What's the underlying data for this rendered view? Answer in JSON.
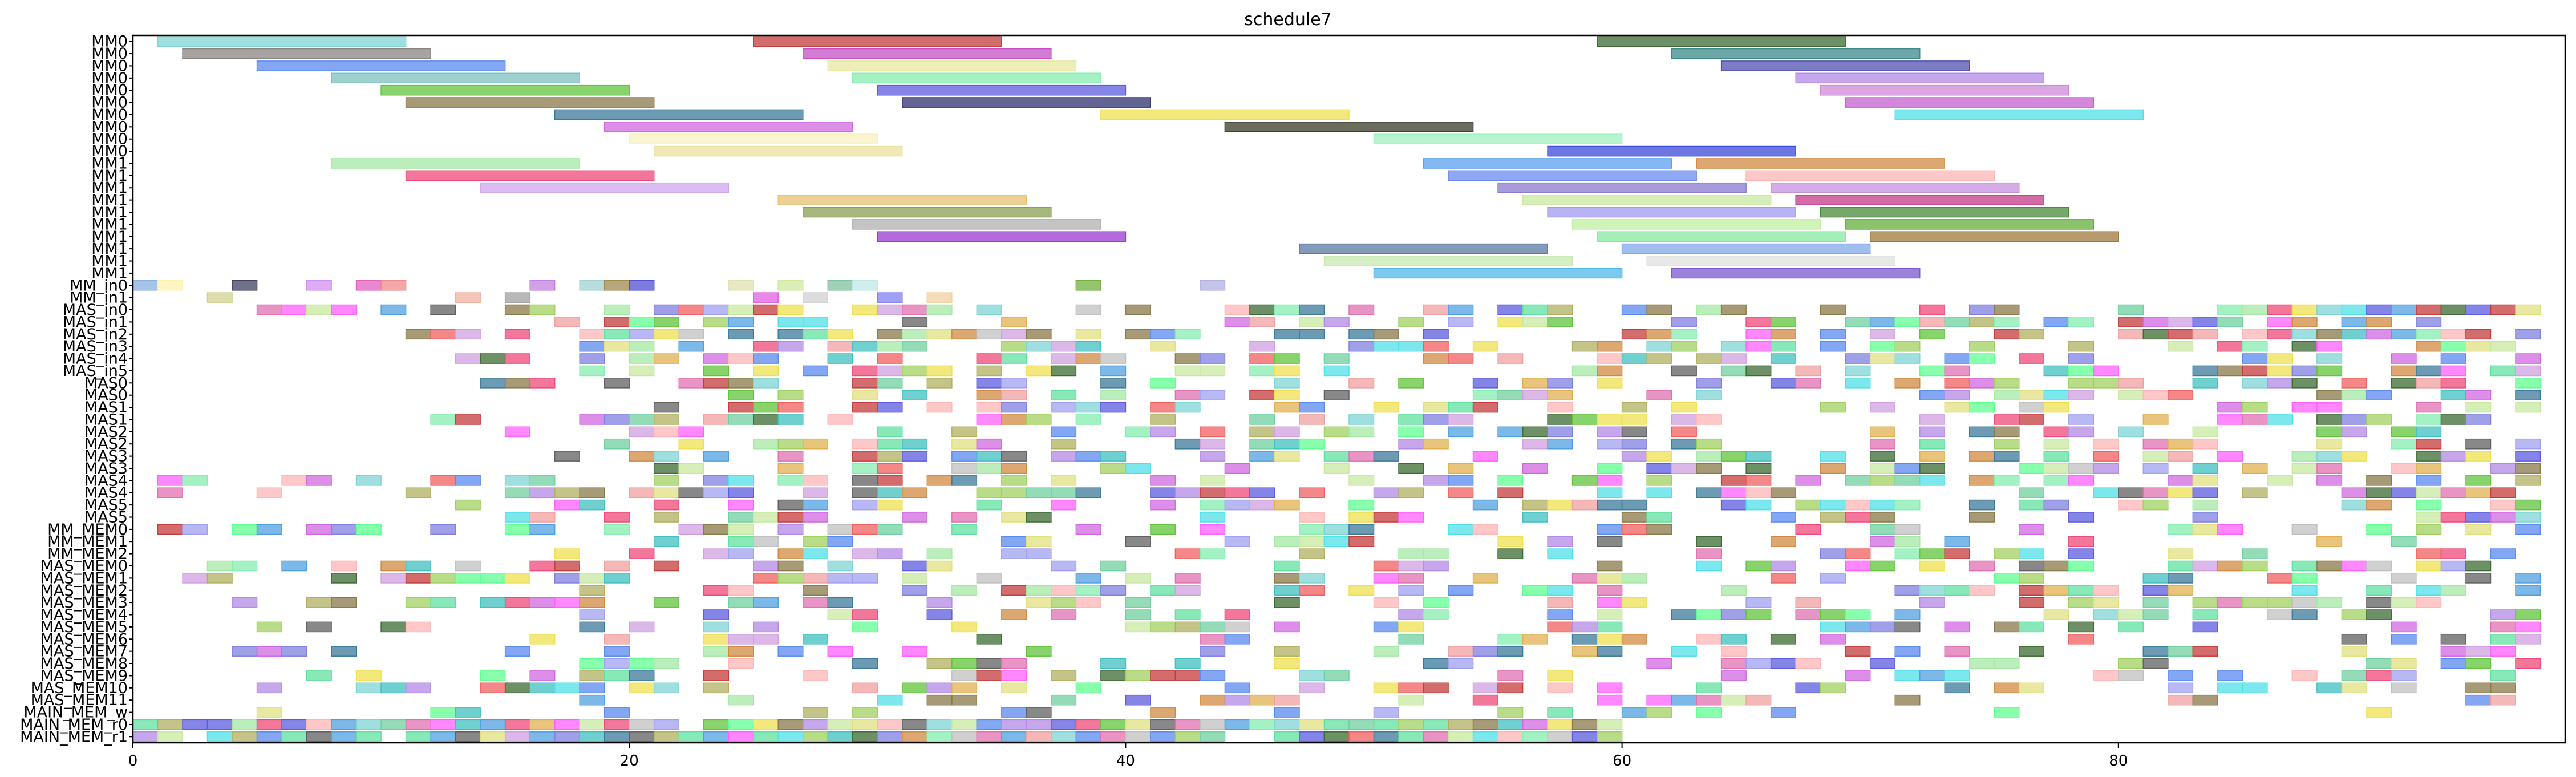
{
  "chart_data": {
    "type": "gantt",
    "title": "schedule7",
    "xlabel": "",
    "ylabel": "",
    "xlim": [
      0,
      98
    ],
    "x_ticks": [
      0,
      20,
      40,
      60,
      80
    ],
    "grid": false,
    "legend": "none",
    "rows": [
      {
        "label": "MM0",
        "bars": [
          [
            1,
            11,
            "#7fd4d4"
          ],
          [
            25,
            35,
            "#c43c3c"
          ],
          [
            59,
            69,
            "#3d6b33"
          ]
        ]
      },
      {
        "label": "MM0",
        "bars": [
          [
            2,
            12,
            "#8a8480"
          ],
          [
            27,
            37,
            "#c450c4"
          ],
          [
            62,
            72,
            "#3c8a8a"
          ]
        ]
      },
      {
        "label": "MM0",
        "bars": [
          [
            5,
            15,
            "#5a8aee"
          ],
          [
            28,
            38,
            "#e8e8a0"
          ],
          [
            64,
            74,
            "#5050b0"
          ]
        ]
      },
      {
        "label": "MM0",
        "bars": [
          [
            8,
            18,
            "#7ec0c0"
          ],
          [
            29,
            39,
            "#86eeb0"
          ],
          [
            67,
            77,
            "#b38ae6"
          ]
        ]
      },
      {
        "label": "MM0",
        "bars": [
          [
            10,
            20,
            "#62c43c"
          ],
          [
            30,
            40,
            "#5c5ce0"
          ],
          [
            68,
            78,
            "#d088d8"
          ]
        ]
      },
      {
        "label": "MM0",
        "bars": [
          [
            11,
            21,
            "#8a7a4a"
          ],
          [
            31,
            41,
            "#303070"
          ],
          [
            69,
            79,
            "#c460d0"
          ]
        ]
      },
      {
        "label": "MM0",
        "bars": [
          [
            17,
            27,
            "#3c7a9a"
          ],
          [
            39,
            49,
            "#eee050"
          ],
          [
            71,
            81,
            "#50e0e8"
          ]
        ]
      },
      {
        "label": "MM0",
        "bars": [
          [
            19,
            29,
            "#d068e0"
          ],
          [
            44,
            54,
            "#3a3a28"
          ]
        ]
      },
      {
        "label": "MM0",
        "bars": [
          [
            20,
            30,
            "#f8f0c0"
          ],
          [
            50,
            60,
            "#a0f0c0"
          ]
        ]
      },
      {
        "label": "MM0",
        "bars": [
          [
            21,
            31,
            "#ece0a0"
          ],
          [
            57,
            67,
            "#3c4ad8"
          ]
        ]
      },
      {
        "label": "MM1",
        "bars": [
          [
            8,
            18,
            "#a6e8a6"
          ],
          [
            52,
            62,
            "#5ca0ee"
          ],
          [
            63,
            73,
            "#d08a40"
          ]
        ]
      },
      {
        "label": "MM1",
        "bars": [
          [
            11,
            21,
            "#ee4a7a"
          ],
          [
            53,
            63,
            "#6a8af0"
          ],
          [
            65,
            75,
            "#ffb6b6"
          ]
        ]
      },
      {
        "label": "MM1",
        "bars": [
          [
            14,
            24,
            "#d0a6ee"
          ],
          [
            55,
            65,
            "#8a7ad0"
          ],
          [
            66,
            76,
            "#c490e0"
          ]
        ]
      },
      {
        "label": "MM1",
        "bars": [
          [
            26,
            36,
            "#e8c070"
          ],
          [
            56,
            66,
            "#c8e8a0"
          ],
          [
            67,
            77,
            "#c43a8a"
          ]
        ]
      },
      {
        "label": "MM1",
        "bars": [
          [
            27,
            37,
            "#8aa050"
          ],
          [
            57,
            67,
            "#a09af0"
          ],
          [
            68,
            78,
            "#4a8a3a"
          ]
        ]
      },
      {
        "label": "MM1",
        "bars": [
          [
            29,
            39,
            "#b0b0b0"
          ],
          [
            58,
            68,
            "#c0f0a0"
          ],
          [
            69,
            79,
            "#62b03c"
          ]
        ]
      },
      {
        "label": "MM1",
        "bars": [
          [
            30,
            40,
            "#9a3ad0"
          ],
          [
            59,
            69,
            "#86e8a0"
          ],
          [
            70,
            80,
            "#a07a3c"
          ]
        ]
      },
      {
        "label": "MM1",
        "bars": [
          [
            47,
            57,
            "#5a7aa0"
          ],
          [
            60,
            70,
            "#80a8e8"
          ]
        ]
      },
      {
        "label": "MM1",
        "bars": [
          [
            48,
            58,
            "#c8e8b0"
          ],
          [
            61,
            71,
            "#e0e0e0"
          ]
        ]
      },
      {
        "label": "MM1",
        "bars": [
          [
            50,
            60,
            "#50b8e8"
          ],
          [
            62,
            72,
            "#7a5ad0"
          ]
        ]
      },
      {
        "label": "MM_in0",
        "bars": [
          [
            0,
            1,
            "#8ab0e0"
          ],
          [
            1,
            2,
            "#fff0b0"
          ],
          [
            4,
            5,
            "#404060"
          ],
          [
            7,
            8,
            "#d090f0"
          ],
          [
            9,
            10,
            "#e060c0"
          ],
          [
            10,
            11,
            "#f08a8a"
          ],
          [
            16,
            17,
            "#c480e0"
          ],
          [
            18,
            19,
            "#a0d0d0"
          ],
          [
            19,
            20,
            "#a08a50"
          ],
          [
            20,
            21,
            "#5050d0"
          ],
          [
            24,
            25,
            "#e0e0b0"
          ],
          [
            26,
            27,
            "#d0e8a0"
          ],
          [
            28,
            29,
            "#80c0a0"
          ],
          [
            29,
            30,
            "#c0e8e8"
          ],
          [
            38,
            39,
            "#70b040"
          ],
          [
            43,
            44,
            "#b0b0e0"
          ]
        ]
      },
      {
        "label": "MM_in1",
        "bars": [
          [
            3,
            4,
            "#d0d090"
          ],
          [
            13,
            14,
            "#f0b0a0"
          ],
          [
            15,
            16,
            "#a0a0a0"
          ],
          [
            25,
            26,
            "#e060e0"
          ],
          [
            27,
            28,
            "#d0d0d0"
          ],
          [
            30,
            31,
            "#8080f0"
          ],
          [
            32,
            33,
            "#f0d0a0"
          ]
        ]
      }
    ],
    "random_rows": [
      {
        "label": "MAS_in0",
        "seed": 3,
        "density": 0.62
      },
      {
        "label": "MAS_in1",
        "seed": 5,
        "density": 0.55
      },
      {
        "label": "MAS_in2",
        "seed": 7,
        "density": 0.58
      },
      {
        "label": "MAS_in3",
        "seed": 11,
        "density": 0.55
      },
      {
        "label": "MAS_in4",
        "seed": 13,
        "density": 0.5
      },
      {
        "label": "MAS_in5",
        "seed": 17,
        "density": 0.45
      },
      {
        "label": "MAS0",
        "seed": 19,
        "density": 0.5
      },
      {
        "label": "MAS0",
        "seed": 23,
        "density": 0.5
      },
      {
        "label": "MAS1",
        "seed": 29,
        "density": 0.48
      },
      {
        "label": "MAS1",
        "seed": 31,
        "density": 0.45
      },
      {
        "label": "MAS2",
        "seed": 37,
        "density": 0.42
      },
      {
        "label": "MAS2",
        "seed": 41,
        "density": 0.45
      },
      {
        "label": "MAS3",
        "seed": 43,
        "density": 0.48
      },
      {
        "label": "MAS3",
        "seed": 47,
        "density": 0.45
      },
      {
        "label": "MAS4",
        "seed": 53,
        "density": 0.5
      },
      {
        "label": "MAS4",
        "seed": 59,
        "density": 0.48
      },
      {
        "label": "MAS5",
        "seed": 61,
        "density": 0.5
      },
      {
        "label": "MAS5",
        "seed": 67,
        "density": 0.45
      },
      {
        "label": "MM_MEM0",
        "seed": 71,
        "density": 0.4
      },
      {
        "label": "MM_MEM1",
        "seed": 73,
        "density": 0.42
      },
      {
        "label": "MM_MEM2",
        "seed": 79,
        "density": 0.35
      },
      {
        "label": "MAS_MEM0",
        "seed": 83,
        "density": 0.4
      },
      {
        "label": "MAS_MEM1",
        "seed": 89,
        "density": 0.45
      },
      {
        "label": "MAS_MEM2",
        "seed": 97,
        "density": 0.42
      },
      {
        "label": "MAS_MEM3",
        "seed": 101,
        "density": 0.42
      },
      {
        "label": "MAS_MEM4",
        "seed": 103,
        "density": 0.4
      },
      {
        "label": "MAS_MEM5",
        "seed": 107,
        "density": 0.4
      },
      {
        "label": "MAS_MEM6",
        "seed": 109,
        "density": 0.4
      },
      {
        "label": "MAS_MEM7",
        "seed": 113,
        "density": 0.4
      },
      {
        "label": "MAS_MEM8",
        "seed": 127,
        "density": 0.38
      },
      {
        "label": "MAS_MEM9",
        "seed": 131,
        "density": 0.38
      },
      {
        "label": "MAS_MEM10",
        "seed": 137,
        "density": 0.36
      },
      {
        "label": "MAS_MEM11",
        "seed": 139,
        "density": 0.34
      },
      {
        "label": "MAIN_MEM_w",
        "seed": 149,
        "density": 0.2
      },
      {
        "label": "MAIN_MEM_r0",
        "seed": 151,
        "density": 0.95
      },
      {
        "label": "MAIN_MEM_r1",
        "seed": 157,
        "density": 0.95
      }
    ],
    "palette": [
      "#c43c3c",
      "#3d6b33",
      "#7fd4d4",
      "#5a8aee",
      "#62c43c",
      "#d068e0",
      "#eee050",
      "#50e0e8",
      "#8a7a4a",
      "#5c5ce0",
      "#ee4a7a",
      "#a6e8a6",
      "#d08a40",
      "#c8e8a0",
      "#86eeb0",
      "#3c7a9a",
      "#b38ae6",
      "#ffb6b6",
      "#f06060",
      "#70d0a0",
      "#a0a0f0",
      "#e0b050",
      "#50a0e0",
      "#e070b0",
      "#60e0a0",
      "#b0b060",
      "#8080e0",
      "#e0e080",
      "#40c0c0",
      "#f0a0a0",
      "#a0d060",
      "#d0a0e0",
      "#606060",
      "#c0c0c0",
      "#ff60ff",
      "#60ff90"
    ]
  }
}
